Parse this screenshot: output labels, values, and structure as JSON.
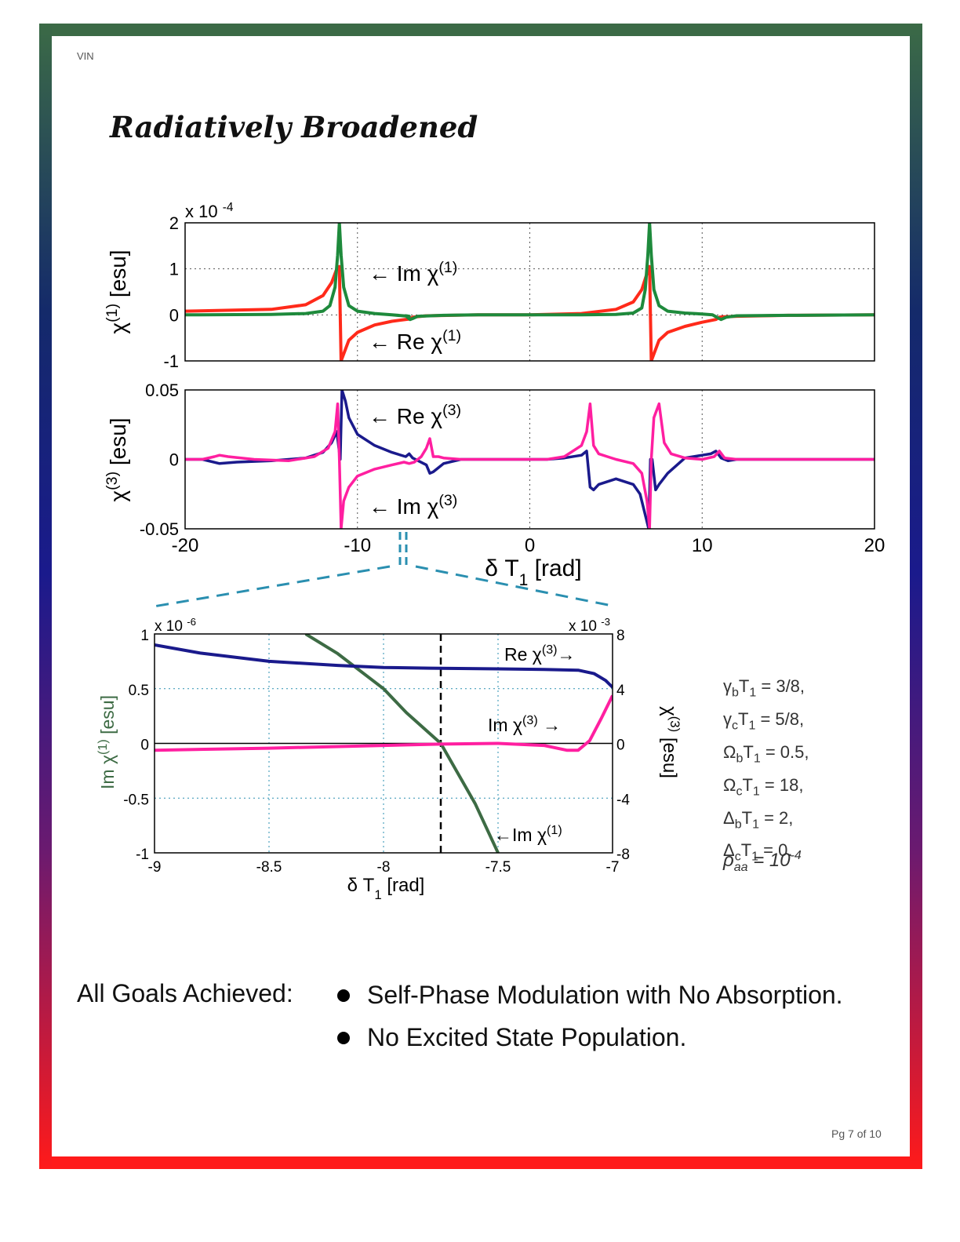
{
  "header": {
    "left_mark": "VIN",
    "title": "Radiatively Broadened"
  },
  "colors": {
    "green": "#1e8a3c",
    "red": "#ff2a1a",
    "navy": "#1a1a8c",
    "pink": "#ff1fa0",
    "dkgreen": "#3d6b44",
    "dash": "#2a8fb0"
  },
  "chart_data": [
    {
      "type": "line",
      "ylabel_base": "χ",
      "ylabel_sup": "(1)",
      "ylabel_unit": " [esu]",
      "scale_note": "x 10",
      "scale_exp": "-4",
      "xlim": [
        -20,
        20
      ],
      "ylim": [
        -1,
        2
      ],
      "x_ticks": [
        -20,
        -10,
        0,
        10,
        20
      ],
      "y_ticks": [
        "2",
        "1",
        "0",
        "-1"
      ],
      "grid": true,
      "series": [
        {
          "name": "Im χ(1)",
          "color": "#1e8a3c",
          "x": [
            -20,
            -15,
            -13,
            -12,
            -11.6,
            -11.3,
            -11.15,
            -11.05,
            -10.95,
            -10.8,
            -10.5,
            -10,
            -9,
            -8,
            -7,
            -7.2,
            -6.95,
            -6.8,
            -6.5,
            -5,
            -3,
            0,
            3,
            5,
            6,
            6.5,
            6.7,
            6.85,
            6.95,
            7.05,
            7.2,
            7.5,
            8,
            9,
            10,
            10.6,
            10.9,
            11.1,
            11.4,
            12,
            15,
            20
          ],
          "y": [
            0,
            0.01,
            0.03,
            0.08,
            0.2,
            0.6,
            1.3,
            2,
            1.3,
            0.6,
            0.2,
            0.08,
            0.03,
            0.0,
            -0.03,
            -0.02,
            -0.1,
            -0.08,
            -0.03,
            -0.01,
            0,
            0,
            0,
            0.01,
            0.04,
            0.15,
            0.55,
            1.3,
            2,
            1.3,
            0.55,
            0.2,
            0.08,
            0.04,
            0.02,
            0,
            -0.06,
            -0.1,
            -0.05,
            -0.02,
            -0.01,
            0
          ]
        },
        {
          "name": "Re χ(1)",
          "color": "#ff2a1a",
          "x": [
            -20,
            -15,
            -13,
            -12,
            -11.5,
            -11.2,
            -11.05,
            -11,
            -10.95,
            -10.7,
            -10.5,
            -10,
            -9,
            -8,
            -7,
            -6.8,
            -6,
            -3,
            0,
            3,
            5,
            6,
            6.5,
            6.8,
            6.95,
            7,
            7.05,
            7.2,
            7.5,
            8,
            9,
            10,
            10.8,
            11,
            11.3,
            12,
            15,
            20
          ],
          "y": [
            0.08,
            0.12,
            0.22,
            0.42,
            0.7,
            1.0,
            1.05,
            0,
            -1,
            -0.75,
            -0.55,
            -0.38,
            -0.22,
            -0.14,
            -0.09,
            -0.05,
            -0.02,
            0,
            0,
            0.03,
            0.12,
            0.28,
            0.55,
            0.9,
            1.05,
            0,
            -1,
            -0.85,
            -0.55,
            -0.38,
            -0.25,
            -0.16,
            -0.1,
            -0.05,
            -0.04,
            -0.03,
            -0.01,
            0
          ]
        }
      ],
      "annotations": [
        {
          "arrow": "←",
          "text": "Im χ",
          "sup": "(1)"
        },
        {
          "arrow": "←",
          "text": "Re χ",
          "sup": "(1)"
        }
      ]
    },
    {
      "type": "line",
      "ylabel_base": "χ",
      "ylabel_sup": "(3)",
      "ylabel_unit": " [esu]",
      "xlabel_base": "δ T",
      "xlabel_sub": "1",
      "xlabel_unit": " [rad]",
      "xlim": [
        -20,
        20
      ],
      "ylim": [
        -0.05,
        0.05
      ],
      "x_ticks": [
        -20,
        -10,
        0,
        10,
        20
      ],
      "y_ticks": [
        "0.05",
        "0",
        "-0.05"
      ],
      "grid": true,
      "series": [
        {
          "name": "Re χ(3)",
          "color": "#1a1a8c",
          "x": [
            -20,
            -19,
            -18,
            -17,
            -15,
            -13,
            -12,
            -11.5,
            -11.2,
            -11,
            -10.9,
            -10.7,
            -10.5,
            -10,
            -9,
            -8,
            -7.2,
            -7,
            -6.8,
            -6,
            -5.8,
            -5.6,
            -5.4,
            -5,
            -4,
            -3,
            -1,
            0,
            1,
            2,
            3,
            3.3,
            3.5,
            3.7,
            4,
            5,
            6,
            6.4,
            6.7,
            6.9,
            7.0,
            7.1,
            7.3,
            7.5,
            8,
            9,
            10,
            10.5,
            10.8,
            11.1,
            11.5,
            12,
            15,
            20
          ],
          "y": [
            0,
            0.0,
            -0.003,
            -0.002,
            -0.001,
            0.001,
            0.005,
            0.012,
            0.02,
            0.0,
            0.05,
            0.042,
            0.03,
            0.018,
            0.01,
            0.005,
            0.002,
            0.004,
            0.001,
            -0.004,
            -0.01,
            -0.009,
            -0.007,
            -0.003,
            0,
            0,
            0,
            0,
            0,
            0.001,
            0.003,
            0.006,
            -0.02,
            -0.022,
            -0.018,
            -0.014,
            -0.018,
            -0.025,
            -0.04,
            -0.05,
            0,
            0.0,
            -0.022,
            -0.018,
            -0.01,
            0.001,
            0.003,
            0.004,
            0.006,
            0.001,
            -0.001,
            0,
            0,
            0
          ]
        },
        {
          "name": "Im χ(3)",
          "color": "#ff1fa0",
          "x": [
            -20,
            -19,
            -18.3,
            -18,
            -17.5,
            -16,
            -14,
            -12.5,
            -11.7,
            -11.3,
            -11.15,
            -11.05,
            -10.95,
            -10.8,
            -10.5,
            -10,
            -9,
            -8,
            -7.3,
            -7,
            -6.7,
            -6.3,
            -6,
            -5.8,
            -5.6,
            -5.3,
            -5,
            -4,
            -3,
            -1,
            0,
            1,
            2,
            3,
            3.3,
            3.5,
            3.7,
            4,
            4.5,
            5,
            6,
            6.5,
            6.8,
            6.95,
            7.05,
            7.2,
            7.5,
            7.8,
            8.2,
            9,
            10,
            10.7,
            11,
            11.3,
            12,
            15,
            20
          ],
          "y": [
            0,
            0,
            0.002,
            0.003,
            0.002,
            0.0,
            -0.001,
            0.002,
            0.008,
            0.02,
            0.04,
            0,
            -0.05,
            -0.03,
            -0.02,
            -0.012,
            -0.007,
            -0.004,
            -0.002,
            -0.003,
            -0.002,
            0.002,
            0.008,
            0.015,
            0.002,
            0.002,
            0.001,
            0,
            0,
            0,
            0,
            0,
            0.002,
            0.01,
            0.02,
            0.04,
            0.01,
            0.004,
            0.002,
            0.0,
            -0.003,
            -0.01,
            -0.03,
            -0.05,
            0,
            0.03,
            0.04,
            0.012,
            0.004,
            0.001,
            0,
            0.002,
            0.006,
            0.001,
            0,
            0,
            0
          ]
        }
      ],
      "annotations": [
        {
          "arrow": "←",
          "text": "Re χ",
          "sup": "(3)"
        },
        {
          "arrow": "←",
          "text": "Im χ",
          "sup": "(3)"
        }
      ]
    },
    {
      "type": "line",
      "xlabel_base": "δ T",
      "xlabel_sub": "1",
      "xlabel_unit": " [rad]",
      "ylabel_left_base": "Im χ",
      "ylabel_left_sup": "(1)",
      "ylabel_left_unit": " [esu]",
      "ylabel_right_base": "χ",
      "ylabel_right_sup": "(3)",
      "ylabel_right_unit": " [esu]",
      "scale_left": "x 10",
      "scale_left_exp": "-6",
      "scale_right": "x 10",
      "scale_right_exp": "-3",
      "xlim": [
        -9,
        -7
      ],
      "ylim_left": [
        -1,
        1
      ],
      "ylim_right": [
        -8,
        8
      ],
      "x_ticks": [
        "-9",
        "-8.5",
        "-8",
        "-7.5",
        "-7"
      ],
      "y_ticks_left": [
        "1",
        "0.5",
        "0",
        "-0.5",
        "-1"
      ],
      "y_ticks_right": [
        "8",
        "4",
        "0",
        "-4",
        "-8"
      ],
      "grid": true,
      "series": [
        {
          "name": "Im χ(1)",
          "color": "#3d6b44",
          "axis": "left",
          "x": [
            -8.34,
            -8.2,
            -8.0,
            -7.9,
            -7.75,
            -7.6,
            -7.5
          ],
          "y": [
            1.0,
            0.82,
            0.5,
            0.28,
            0.0,
            -0.55,
            -1.0
          ]
        },
        {
          "name": "Re χ(3)",
          "color": "#1a1a8c",
          "axis": "right",
          "x": [
            -9,
            -8.8,
            -8.5,
            -8.2,
            -8.0,
            -7.8,
            -7.5,
            -7.3,
            -7.15,
            -7.08,
            -7.03,
            -7.0
          ],
          "y": [
            7.2,
            6.6,
            6.0,
            5.7,
            5.55,
            5.5,
            5.45,
            5.4,
            5.35,
            5.1,
            4.6,
            4.1
          ]
        },
        {
          "name": "Im χ(3)",
          "color": "#ff1fa0",
          "axis": "right",
          "x": [
            -9,
            -8.5,
            -8.0,
            -7.75,
            -7.5,
            -7.3,
            -7.2,
            -7.15,
            -7.1,
            -7.05,
            -7.0
          ],
          "y": [
            -0.5,
            -0.35,
            -0.15,
            -0.05,
            0.0,
            -0.15,
            -0.5,
            -0.5,
            0.2,
            1.8,
            3.5
          ]
        }
      ],
      "annotations": [
        {
          "text": "Re χ",
          "sup": "(3)",
          "arrow": "→"
        },
        {
          "text": "Im χ",
          "sup": "(3)",
          "arrow": "→"
        },
        {
          "arrow": "←",
          "text": "Im χ",
          "sup": "(1)"
        }
      ],
      "dashed_vline_x": -7.75
    }
  ],
  "params": [
    {
      "sym": "γ",
      "s1": "b",
      "t": "T",
      "s2": "1",
      "val": " = 3/8,"
    },
    {
      "sym": "γ",
      "s1": "c",
      "t": "T",
      "s2": "1",
      "val": " = 5/8,"
    },
    {
      "sym": "Ω",
      "s1": "b",
      "t": "T",
      "s2": "1",
      "val": " = 0.5,"
    },
    {
      "sym": "Ω",
      "s1": "c",
      "t": "T",
      "s2": "1",
      "val": " = 18,"
    },
    {
      "sym": "Δ",
      "s1": "b",
      "t": "T",
      "s2": "1",
      "val": " = 2,"
    },
    {
      "sym": "Δ",
      "s1": "c",
      "t": "T",
      "s2": "1",
      "val": " = 0."
    }
  ],
  "rho": {
    "sym": "ρ",
    "sub": "aa",
    "eq": " = 10",
    "exp": "-4"
  },
  "goals": {
    "label": "All Goals Achieved:",
    "items": [
      "Self-Phase Modulation with No Absorption.",
      "No Excited State Population."
    ]
  },
  "footer": {
    "page": "Pg 7 of 10"
  }
}
